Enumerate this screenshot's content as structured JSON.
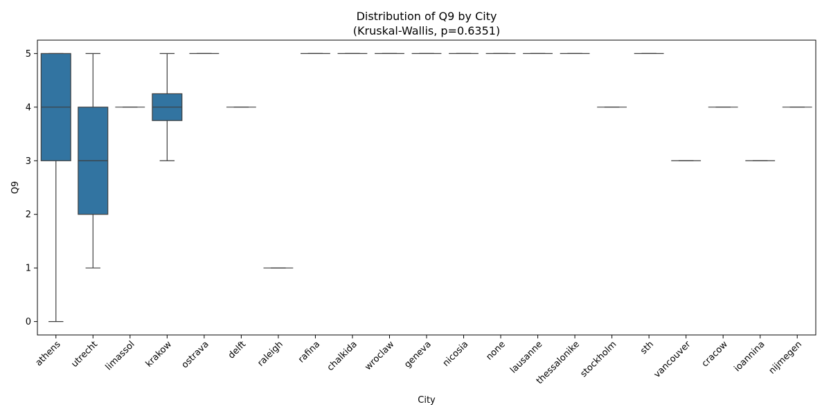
{
  "chart_data": {
    "type": "box",
    "title": "Distribution of Q9 by City",
    "subtitle": "(Kruskal-Wallis, p=0.6351)",
    "xlabel": "City",
    "ylabel": "Q9",
    "ylim": [
      -0.25,
      5.25
    ],
    "yticks": [
      0,
      1,
      2,
      3,
      4,
      5
    ],
    "grid": false,
    "box_color": "#3274a1",
    "line_color": "#3d3d3d",
    "categories": [
      "athens",
      "utrecht",
      "limassol",
      "krakow",
      "ostrava",
      "delft",
      "raleigh",
      "rafina",
      "chalkida",
      "wroclaw",
      "geneva",
      "nicosia",
      "none",
      "lausanne",
      "thessalonike",
      "stockholm",
      "sth",
      "vancouver",
      "cracow",
      "ioannina",
      "nijmegen"
    ],
    "boxes": [
      {
        "min": 0,
        "q1": 3,
        "median": 4,
        "q3": 5,
        "max": 5
      },
      {
        "min": 1,
        "q1": 2,
        "median": 3,
        "q3": 4,
        "max": 5
      },
      {
        "min": 4,
        "q1": 4,
        "median": 4,
        "q3": 4,
        "max": 4
      },
      {
        "min": 3,
        "q1": 3.75,
        "median": 4,
        "q3": 4.25,
        "max": 5
      },
      {
        "min": 5,
        "q1": 5,
        "median": 5,
        "q3": 5,
        "max": 5
      },
      {
        "min": 4,
        "q1": 4,
        "median": 4,
        "q3": 4,
        "max": 4
      },
      {
        "min": 1,
        "q1": 1,
        "median": 1,
        "q3": 1,
        "max": 1
      },
      {
        "min": 5,
        "q1": 5,
        "median": 5,
        "q3": 5,
        "max": 5
      },
      {
        "min": 5,
        "q1": 5,
        "median": 5,
        "q3": 5,
        "max": 5
      },
      {
        "min": 5,
        "q1": 5,
        "median": 5,
        "q3": 5,
        "max": 5
      },
      {
        "min": 5,
        "q1": 5,
        "median": 5,
        "q3": 5,
        "max": 5
      },
      {
        "min": 5,
        "q1": 5,
        "median": 5,
        "q3": 5,
        "max": 5
      },
      {
        "min": 5,
        "q1": 5,
        "median": 5,
        "q3": 5,
        "max": 5
      },
      {
        "min": 5,
        "q1": 5,
        "median": 5,
        "q3": 5,
        "max": 5
      },
      {
        "min": 5,
        "q1": 5,
        "median": 5,
        "q3": 5,
        "max": 5
      },
      {
        "min": 4,
        "q1": 4,
        "median": 4,
        "q3": 4,
        "max": 4
      },
      {
        "min": 5,
        "q1": 5,
        "median": 5,
        "q3": 5,
        "max": 5
      },
      {
        "min": 3,
        "q1": 3,
        "median": 3,
        "q3": 3,
        "max": 3
      },
      {
        "min": 4,
        "q1": 4,
        "median": 4,
        "q3": 4,
        "max": 4
      },
      {
        "min": 3,
        "q1": 3,
        "median": 3,
        "q3": 3,
        "max": 3
      },
      {
        "min": 4,
        "q1": 4,
        "median": 4,
        "q3": 4,
        "max": 4
      }
    ]
  }
}
